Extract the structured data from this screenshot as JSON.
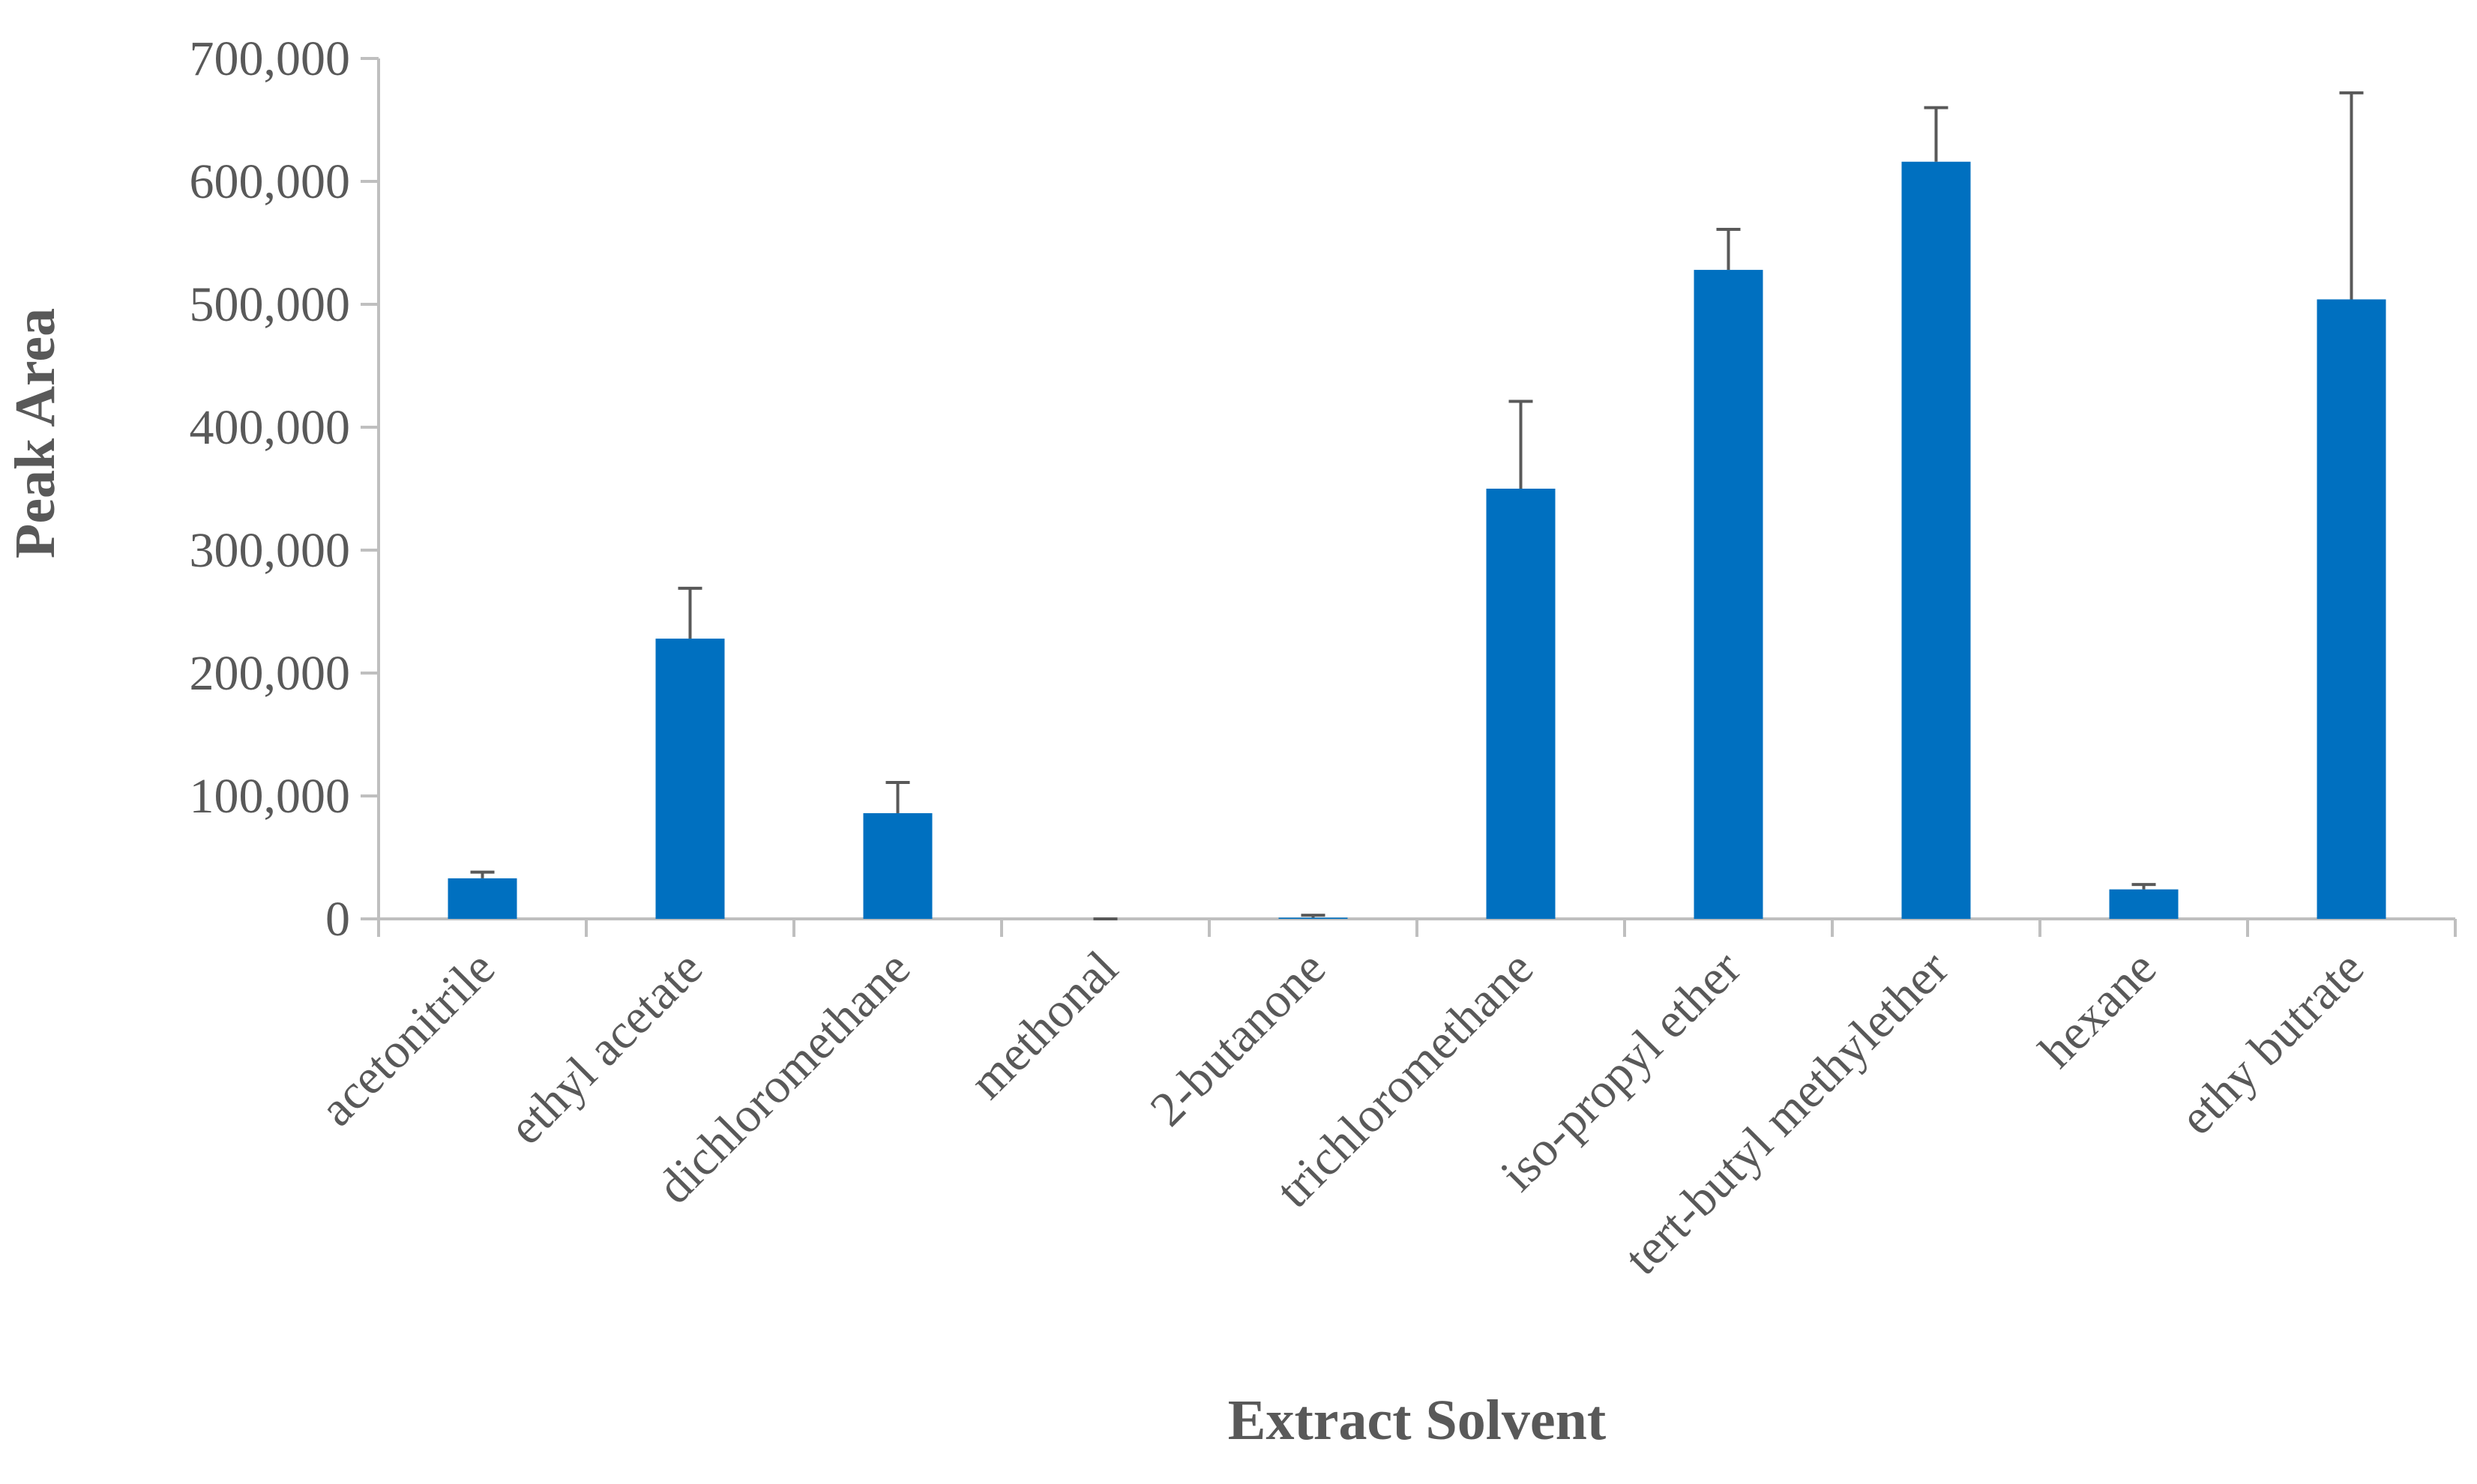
{
  "chart_data": {
    "type": "bar",
    "title": "",
    "xlabel": "Extract Solvent",
    "ylabel": "Peak Area",
    "categories": [
      "acetonitrile",
      "ethyl acetate",
      "dichloromethane",
      "methonal",
      "2-butanone",
      "trichloromethane",
      "iso-propyl ether",
      "tert-butyl methylether",
      "hexane",
      "ethy butrate"
    ],
    "values": [
      33000,
      228000,
      86000,
      0,
      1000,
      350000,
      528000,
      616000,
      24000,
      504000
    ],
    "error": [
      5000,
      41000,
      25000,
      0,
      2000,
      71000,
      33000,
      44000,
      4000,
      168000
    ],
    "ylim": [
      0,
      700000
    ],
    "yticks": [
      0,
      100000,
      200000,
      300000,
      400000,
      500000,
      600000,
      700000
    ],
    "ytick_labels": [
      "0",
      "100,000",
      "200,000",
      "300,000",
      "400,000",
      "500,000",
      "600,000",
      "700,000"
    ],
    "grid": false,
    "legend": "none",
    "colors": {
      "bar": "#0070C0",
      "axis": "#BFBFBF",
      "error": "#595959",
      "text": "#595959"
    }
  }
}
